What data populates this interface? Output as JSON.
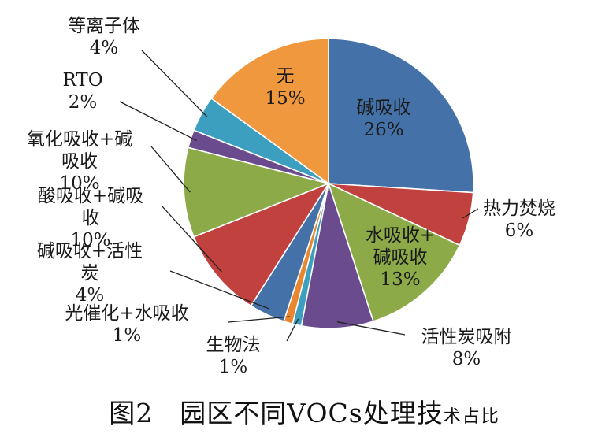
{
  "chart_data": {
    "type": "pie",
    "slices": [
      {
        "label": "碱吸收",
        "value": 26,
        "value_text": "26%",
        "color": "#4472A8"
      },
      {
        "label": "热力焚烧",
        "value": 6,
        "value_text": "6%",
        "color": "#C0413D"
      },
      {
        "label": "水吸收+碱吸收",
        "value": 13,
        "value_text": "13%",
        "color": "#8CAB48"
      },
      {
        "label": "活性炭吸附",
        "value": 8,
        "value_text": "8%",
        "color": "#6A4C8E"
      },
      {
        "label": "生物法",
        "value": 1,
        "value_text": "1%",
        "color": "#3C9FBF"
      },
      {
        "label": "光催化+水吸收",
        "value": 1,
        "value_text": "1%",
        "color": "#E8872E"
      },
      {
        "label": "碱吸收+活性炭",
        "value": 4,
        "value_text": "4%",
        "color": "#4472A8"
      },
      {
        "label": "酸吸收+碱吸收",
        "value": 10,
        "value_text": "10%",
        "color": "#C0413D"
      },
      {
        "label": "氧化吸收+碱吸收",
        "value": 10,
        "value_text": "10%",
        "color": "#8CAB48"
      },
      {
        "label": "RTO",
        "value": 2,
        "value_text": "2%",
        "color": "#6A4C8E"
      },
      {
        "label": "等离子体",
        "value": 4,
        "value_text": "4%",
        "color": "#3C9FBF"
      },
      {
        "label": "无",
        "value": 15,
        "value_text": "15%",
        "color": "#F0983E"
      }
    ]
  },
  "caption": {
    "main": "图2　园区不同VOCs处理技",
    "tail": "术占比"
  }
}
